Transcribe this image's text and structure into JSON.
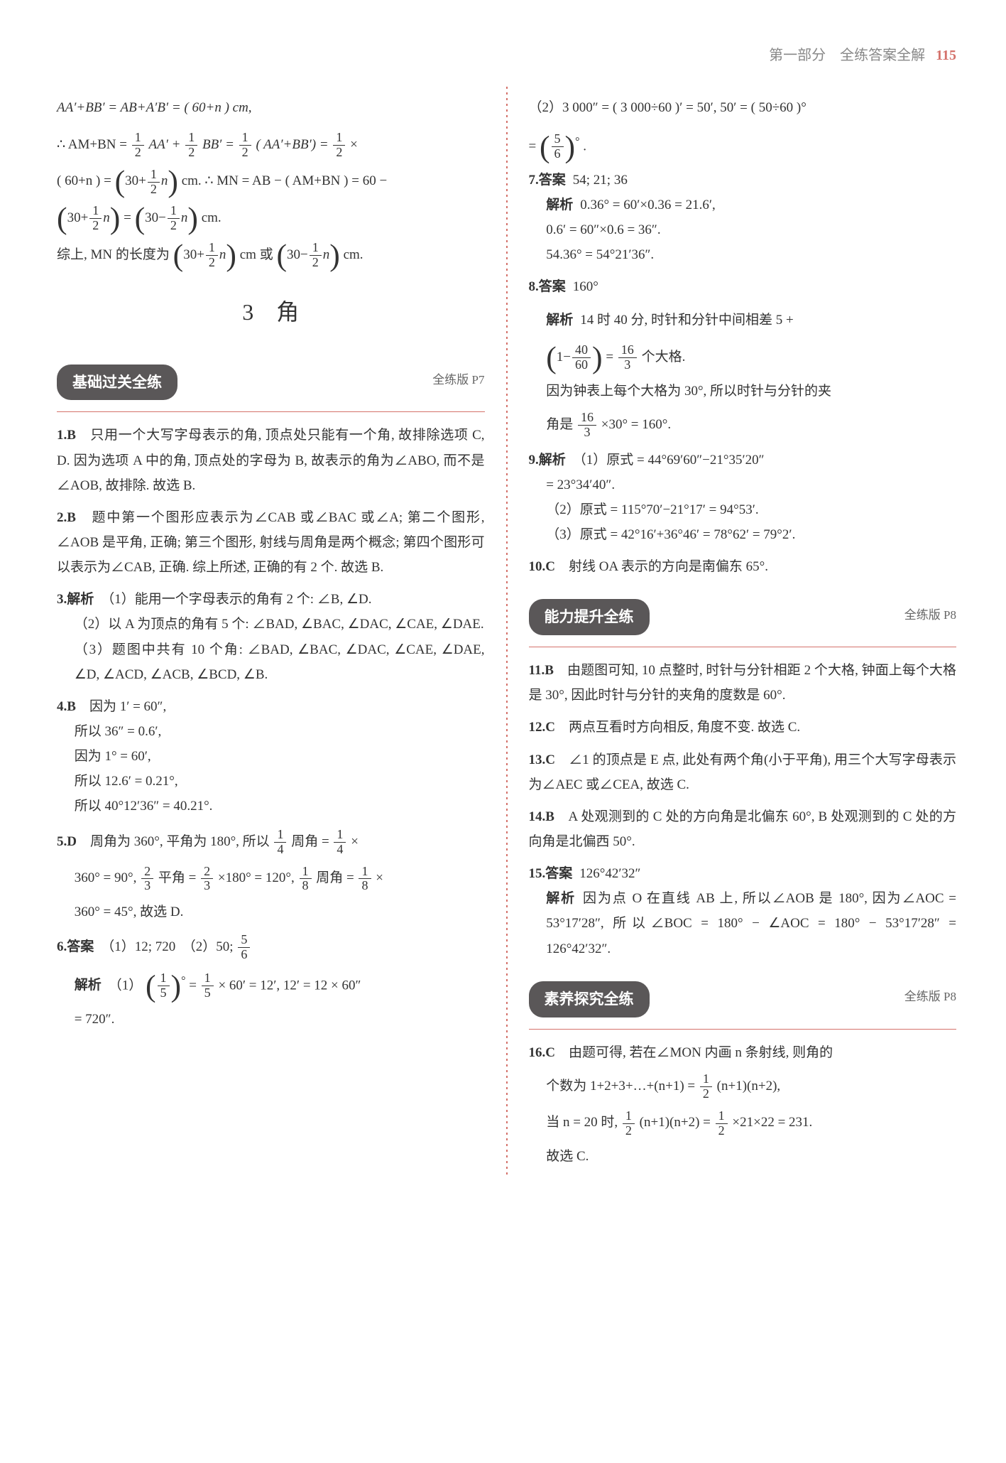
{
  "header": {
    "part_label": "第一部分　全练答案全解",
    "page_number": "115"
  },
  "section_heading": "3　角",
  "pills": {
    "basic": {
      "label": "基础过关全练",
      "ref": "全练版 P7"
    },
    "ability": {
      "label": "能力提升全练",
      "ref": "全练版 P8"
    },
    "core": {
      "label": "素养探究全练",
      "ref": "全练版 P8"
    }
  },
  "left_intro": {
    "line1_pre": "AA′+BB′ = AB+A′B′ = ( 60+n ) cm,",
    "line2_pre": "∴ AM+BN = ",
    "line2_mid1": "AA′ + ",
    "line2_mid2": "BB′ = ",
    "line2_mid3": "( AA′+BB′) = ",
    "line2_end": " ×",
    "line3_pre": "( 60+n ) = ",
    "line3_big_l": "30+",
    "line3_end": "cm. ∴ MN = AB − ( AM+BN ) = 60 −",
    "line4_big_l": "30+",
    "line4_eq": " = ",
    "line4_big_r": "30−",
    "line4_end": "cm.",
    "line5_pre": "综上, MN 的长度为",
    "line5_mid": "cm 或",
    "line5_end": "cm."
  },
  "left_items": {
    "i1": {
      "num": "1.",
      "ans": "B",
      "text": "　只用一个大写字母表示的角, 顶点处只能有一个角, 故排除选项 C, D. 因为选项 A 中的角, 顶点处的字母为 B, 故表示的角为∠ABO, 而不是∠AOB, 故排除. 故选 B."
    },
    "i2": {
      "num": "2.",
      "ans": "B",
      "text": "　题中第一个图形应表示为∠CAB 或∠BAC 或∠A; 第二个图形, ∠AOB 是平角, 正确; 第三个图形, 射线与周角是两个概念; 第四个图形可以表示为∠CAB, 正确. 综上所述, 正确的有 2 个. 故选 B."
    },
    "i3": {
      "num": "3.",
      "label": "解析",
      "part1": "（1）能用一个字母表示的角有 2 个: ∠B, ∠D.",
      "part2": "（2）以 A 为顶点的角有 5 个: ∠BAD, ∠BAC, ∠DAC, ∠CAE, ∠DAE.",
      "part3": "（3）题图中共有 10 个角: ∠BAD, ∠BAC, ∠DAC, ∠CAE, ∠DAE, ∠D, ∠ACD, ∠ACB, ∠BCD, ∠B."
    },
    "i4": {
      "num": "4.",
      "ans": "B",
      "l1": "　因为 1′ = 60″,",
      "l2": "所以 36″ = 0.6′,",
      "l3": "因为 1° = 60′,",
      "l4": "所以 12.6′ = 0.21°,",
      "l5": "所以 40°12′36″ = 40.21°."
    },
    "i5": {
      "num": "5.",
      "ans": "D",
      "pre": "　周角为 360°, 平角为 180°, 所以",
      "mid1": "周角 = ",
      "mid2": " ×",
      "l2_a": "360° = 90°, ",
      "l2_b": "平角 = ",
      "l2_c": "×180° = 120°, ",
      "l2_d": "周角 = ",
      "l2_e": " ×",
      "l3": "360° = 45°, 故选 D."
    },
    "i6": {
      "num": "6.",
      "label": "答案",
      "part_a": "（1）12; 720　（2）50; ",
      "jiexi_label": "解析",
      "j1_pre": "（1）",
      "j1_mid": " = ",
      "j1_end": " × 60′ = 12′, 12′ = 12 × 60″",
      "j2": "= 720″."
    }
  },
  "right_items": {
    "r_top1_pre": "（2）3 000″ = ( 3 000÷60 )′ = 50′, 50′ = ( 50÷60 )°",
    "r_top2_pre": " = ",
    "r_top2_end": ".",
    "i7": {
      "num": "7.",
      "label": "答案",
      "ans": "54; 21; 36",
      "jiexi_label": "解析",
      "l1": "0.36° = 60′×0.36 = 21.6′,",
      "l2": "0.6′ = 60″×0.6 = 36″.",
      "l3": "54.36° = 54°21′36″."
    },
    "i8": {
      "num": "8.",
      "label": "答案",
      "ans": "160°",
      "jiexi_label": "解析",
      "l1": "14 时 40 分, 时针和分针中间相差 5 +",
      "l2_pre": " = ",
      "l2_end": " 个大格.",
      "l3": "因为钟表上每个大格为 30°, 所以时针与分针的夹",
      "l4_pre": "角是 ",
      "l4_end": " ×30° = 160°."
    },
    "i9": {
      "num": "9.",
      "label": "解析",
      "l1": "（1）原式 = 44°69′60″−21°35′20″",
      "l1b": "= 23°34′40″.",
      "l2": "（2）原式 = 115°70′−21°17′ = 94°53′.",
      "l3": "（3）原式 = 42°16′+36°46′ = 78°62′ = 79°2′."
    },
    "i10": {
      "num": "10.",
      "ans": "C",
      "text": "　射线 OA 表示的方向是南偏东 65°."
    },
    "i11": {
      "num": "11.",
      "ans": "B",
      "text": "　由题图可知, 10 点整时, 时针与分针相距 2 个大格, 钟面上每个大格是 30°, 因此时针与分针的夹角的度数是 60°."
    },
    "i12": {
      "num": "12.",
      "ans": "C",
      "text": "　两点互看时方向相反, 角度不变. 故选 C."
    },
    "i13": {
      "num": "13.",
      "ans": "C",
      "text": "　∠1 的顶点是 E 点, 此处有两个角(小于平角), 用三个大写字母表示为∠AEC 或∠CEA, 故选 C."
    },
    "i14": {
      "num": "14.",
      "ans": "B",
      "text": "　A 处观测到的 C 处的方向角是北偏东 60°, B 处观测到的 C 处的方向角是北偏西 50°."
    },
    "i15": {
      "num": "15.",
      "label": "答案",
      "ans": "126°42′32″",
      "jiexi_label": "解析",
      "l1": "因为点 O 在直线 AB 上, 所以∠AOB 是 180°, 因为∠AOC = 53°17′28″, 所以∠BOC = 180° − ∠AOC = 180° − 53°17′28″ = 126°42′32″."
    },
    "i16": {
      "num": "16.",
      "ans": "C",
      "l1_pre": "　由题可得, 若在∠MON 内画 n 条射线, 则角的",
      "l2_pre": "个数为 1+2+3+…+(n+1) = ",
      "l2_end": "(n+1)(n+2),",
      "l3_pre": "当 n = 20 时, ",
      "l3_mid": "(n+1)(n+2) = ",
      "l3_end": "×21×22 = 231.",
      "l4": "故选 C."
    }
  },
  "fractions": {
    "half": {
      "num": "1",
      "den": "2"
    },
    "quarter": {
      "num": "1",
      "den": "4"
    },
    "two_third": {
      "num": "2",
      "den": "3"
    },
    "eighth": {
      "num": "1",
      "den": "8"
    },
    "fifth": {
      "num": "1",
      "den": "5"
    },
    "five_sixth": {
      "num": "5",
      "den": "6"
    },
    "forty_sixty": {
      "num": "40",
      "den": "60"
    },
    "sixteen_three": {
      "num": "16",
      "den": "3"
    }
  }
}
